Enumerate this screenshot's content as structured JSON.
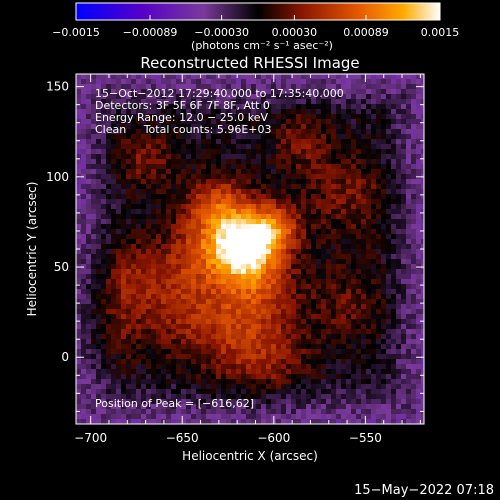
{
  "chart_data": {
    "type": "heatmap",
    "title": "Reconstructed RHESSI Image",
    "xlabel": "Heliocentric X (arcsec)",
    "ylabel": "Heliocentric Y (arcsec)",
    "xlim": [
      -708,
      -518
    ],
    "ylim": [
      -37,
      157
    ],
    "x_ticks": [
      -700,
      -650,
      -600,
      -550
    ],
    "x_tick_labels": [
      "−700",
      "−650",
      "−600",
      "−550"
    ],
    "y_ticks": [
      0,
      50,
      100,
      150
    ],
    "y_tick_labels": [
      "0",
      "50",
      "100",
      "150"
    ],
    "colorbar": {
      "ticks": [
        -0.0015,
        -0.00089,
        -0.0003,
        0.0003,
        0.00089,
        0.0015
      ],
      "tick_labels": [
        "−0.0015",
        "−0.00089",
        "−0.00030",
        "0.00030",
        "0.00089",
        "0.0015"
      ],
      "units": "(photons cm⁻² s⁻¹ asec⁻²)",
      "range": [
        -0.0015,
        0.0015
      ],
      "colors": [
        "#0000ff",
        "#5500c8",
        "#7a3a9a",
        "#000000",
        "#8a1500",
        "#e85a00",
        "#ffaa00",
        "#ffffff"
      ]
    },
    "peak": {
      "x": -616,
      "y": 62
    },
    "info_lines": [
      "15−Oct−2012 17:29:40.000 to 17:35:40.000",
      "Detectors: 3F 5F 6F 7F 8F, Att 0",
      "Energy Range: 12.0 − 25.0 keV",
      "Clean     Total counts: 5.96E+03"
    ],
    "peak_label": "Position of Peak = [−616,62]",
    "timestamp": "15−May−2022 07:18"
  }
}
